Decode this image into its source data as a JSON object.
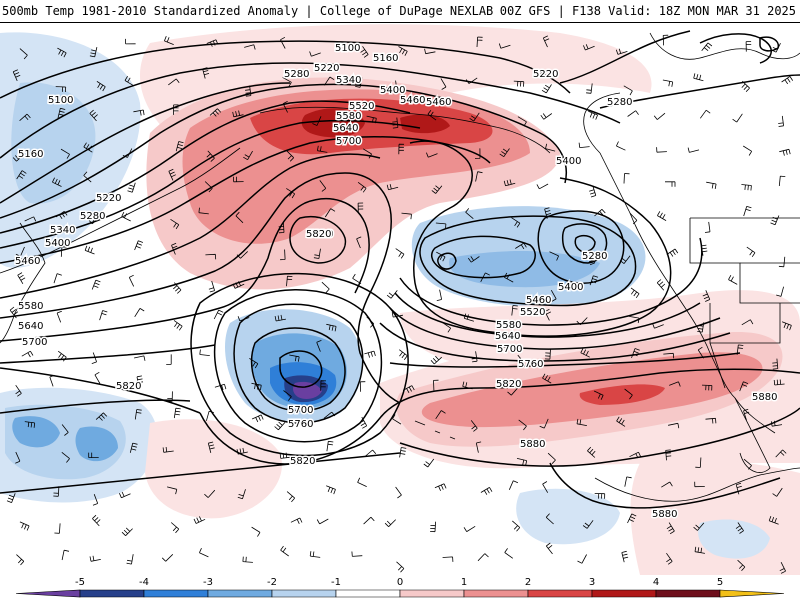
{
  "header": {
    "title": "500mb Temp 1981-2010 Standardized Anomaly | College of DuPage NEXLAB",
    "run_info": "00Z GFS | F138 Valid: 18Z MON MAR 31 2025"
  },
  "colorbar": {
    "ticks": [
      "-5",
      "-4",
      "-3",
      "-2",
      "-1",
      "0",
      "1",
      "2",
      "3",
      "4",
      "5"
    ],
    "colors": [
      "#6a3fa0",
      "#263f8a",
      "#2f7fd8",
      "#6faae0",
      "#b7d3ee",
      "#ffffff",
      "#f6c9c9",
      "#ec9090",
      "#d94545",
      "#b01818",
      "#6e0f1c",
      "#f2c018"
    ]
  },
  "contours": {
    "label_values": [
      "5100",
      "5160",
      "5220",
      "5280",
      "5340",
      "5400",
      "5460",
      "5520",
      "5580",
      "5640",
      "5700",
      "5760",
      "5820",
      "5880"
    ],
    "labels": [
      {
        "text": "5100"
      },
      {
        "text": "5160"
      },
      {
        "text": "5220"
      },
      {
        "text": "5280"
      },
      {
        "text": "5340"
      },
      {
        "text": "5400"
      },
      {
        "text": "5460"
      },
      {
        "text": "5520"
      },
      {
        "text": "5580"
      },
      {
        "text": "5640"
      },
      {
        "text": "5700"
      },
      {
        "text": "5820"
      },
      {
        "text": "5100"
      },
      {
        "text": "5160"
      },
      {
        "text": "5220"
      },
      {
        "text": "5280"
      },
      {
        "text": "5340"
      },
      {
        "text": "5400"
      },
      {
        "text": "5460"
      },
      {
        "text": "5580"
      },
      {
        "text": "5640"
      },
      {
        "text": "5700"
      },
      {
        "text": "5400"
      },
      {
        "text": "5280"
      },
      {
        "text": "5220"
      },
      {
        "text": "5280"
      },
      {
        "text": "5400"
      },
      {
        "text": "5460"
      },
      {
        "text": "5520"
      },
      {
        "text": "5580"
      },
      {
        "text": "5640"
      },
      {
        "text": "5700"
      },
      {
        "text": "5760"
      },
      {
        "text": "5820"
      },
      {
        "text": "5880"
      },
      {
        "text": "5880"
      },
      {
        "text": "5880"
      },
      {
        "text": "5820"
      },
      {
        "text": "5820"
      },
      {
        "text": "5700"
      },
      {
        "text": "5760"
      },
      {
        "text": "5820"
      },
      {
        "text": "5460"
      }
    ]
  }
}
